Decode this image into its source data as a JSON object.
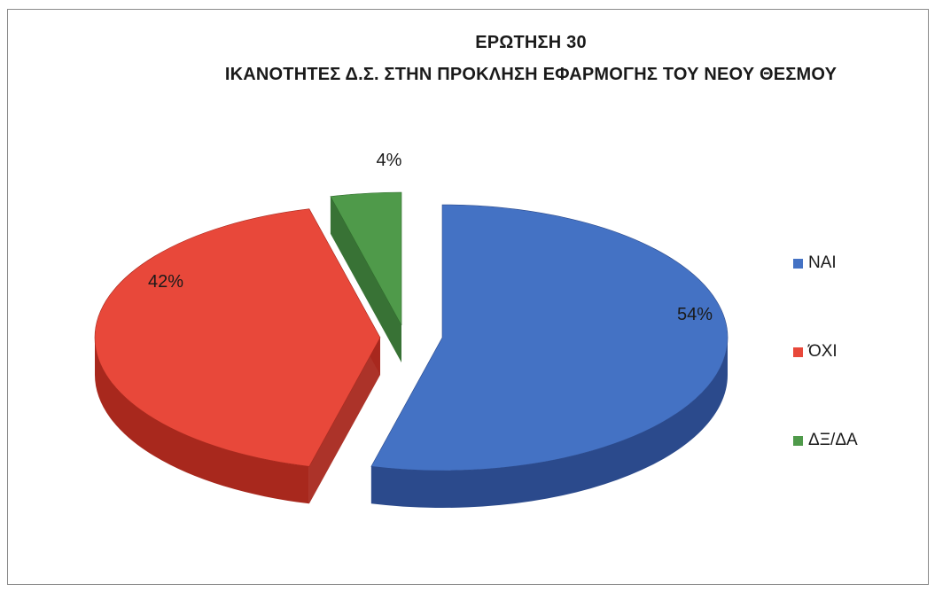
{
  "chart_data": {
    "type": "pie",
    "title": "ΕΡΩΤΗΣΗ 30",
    "subtitle": "ΙΚΑΝΟΤΗΤΕΣ Δ.Σ. ΣΤΗΝ ΠΡΟΚΛΗΣΗ ΕΦΑΡΜΟΓΗΣ ΤΟΥ ΝΕΟΥ ΘΕΣΜΟΥ",
    "style": "3d-exploded",
    "legend_position": "right",
    "slices": [
      {
        "label": "ΝΑΙ",
        "value": 54,
        "value_label": "54%",
        "color": "#4472c4",
        "side_color": "#2b4a8c"
      },
      {
        "label": "ΌΧΙ",
        "value": 42,
        "value_label": "42%",
        "color": "#e8483a",
        "side_color": "#a8281d"
      },
      {
        "label": "ΔΞ/ΔΑ",
        "value": 4,
        "value_label": "4%",
        "color": "#4f9a4a",
        "side_color": "#2d6a2a"
      }
    ]
  }
}
